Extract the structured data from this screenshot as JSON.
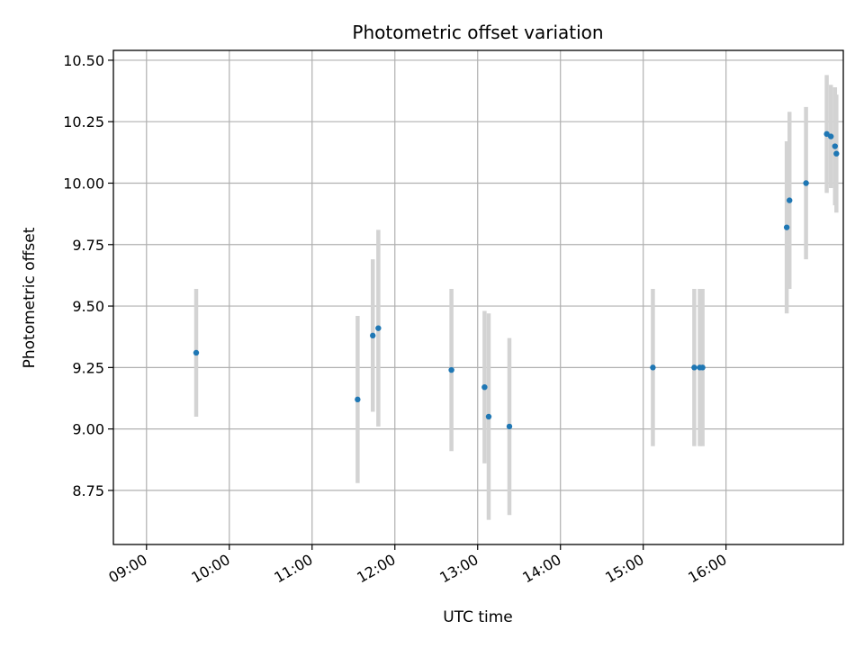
{
  "chart_data": {
    "type": "scatter",
    "title": "Photometric offset variation",
    "xlabel": "UTC time",
    "ylabel": "Photometric offset",
    "grid": true,
    "legend": "none",
    "x_ticks": [
      "09:00",
      "10:00",
      "11:00",
      "12:00",
      "13:00",
      "14:00",
      "15:00",
      "16:00"
    ],
    "y_ticks": [
      "8.75",
      "9.00",
      "9.25",
      "9.50",
      "9.75",
      "10.00",
      "10.25",
      "10.50"
    ],
    "xlim": [
      "08:36",
      "17:25"
    ],
    "ylim": [
      8.53,
      10.54
    ],
    "colors": {
      "point": "#1f77b4",
      "errorbar": "#d3d3d3",
      "grid": "#b0b0b0",
      "axes": "#000000"
    },
    "series": [
      {
        "points": [
          {
            "x": "09:36",
            "y": 9.31,
            "yerr": 0.26
          },
          {
            "x": "11:33",
            "y": 9.12,
            "yerr": 0.34
          },
          {
            "x": "11:44",
            "y": 9.38,
            "yerr": 0.31
          },
          {
            "x": "11:48",
            "y": 9.41,
            "yerr": 0.4
          },
          {
            "x": "12:41",
            "y": 9.24,
            "yerr": 0.33
          },
          {
            "x": "13:05",
            "y": 9.17,
            "yerr": 0.31
          },
          {
            "x": "13:08",
            "y": 9.05,
            "yerr": 0.42
          },
          {
            "x": "13:23",
            "y": 9.01,
            "yerr": 0.36
          },
          {
            "x": "15:07",
            "y": 9.25,
            "yerr": 0.32
          },
          {
            "x": "15:37",
            "y": 9.25,
            "yerr": 0.32
          },
          {
            "x": "15:41",
            "y": 9.25,
            "yerr": 0.32
          },
          {
            "x": "15:43",
            "y": 9.25,
            "yerr": 0.32
          },
          {
            "x": "16:44",
            "y": 9.82,
            "yerr": 0.35
          },
          {
            "x": "16:46",
            "y": 9.93,
            "yerr": 0.36
          },
          {
            "x": "16:58",
            "y": 10.0,
            "yerr": 0.31
          },
          {
            "x": "17:13",
            "y": 10.2,
            "yerr": 0.24
          },
          {
            "x": "17:16",
            "y": 10.19,
            "yerr": 0.21
          },
          {
            "x": "17:19",
            "y": 10.15,
            "yerr": 0.24
          },
          {
            "x": "17:20",
            "y": 10.12,
            "yerr": 0.24
          }
        ]
      }
    ]
  }
}
